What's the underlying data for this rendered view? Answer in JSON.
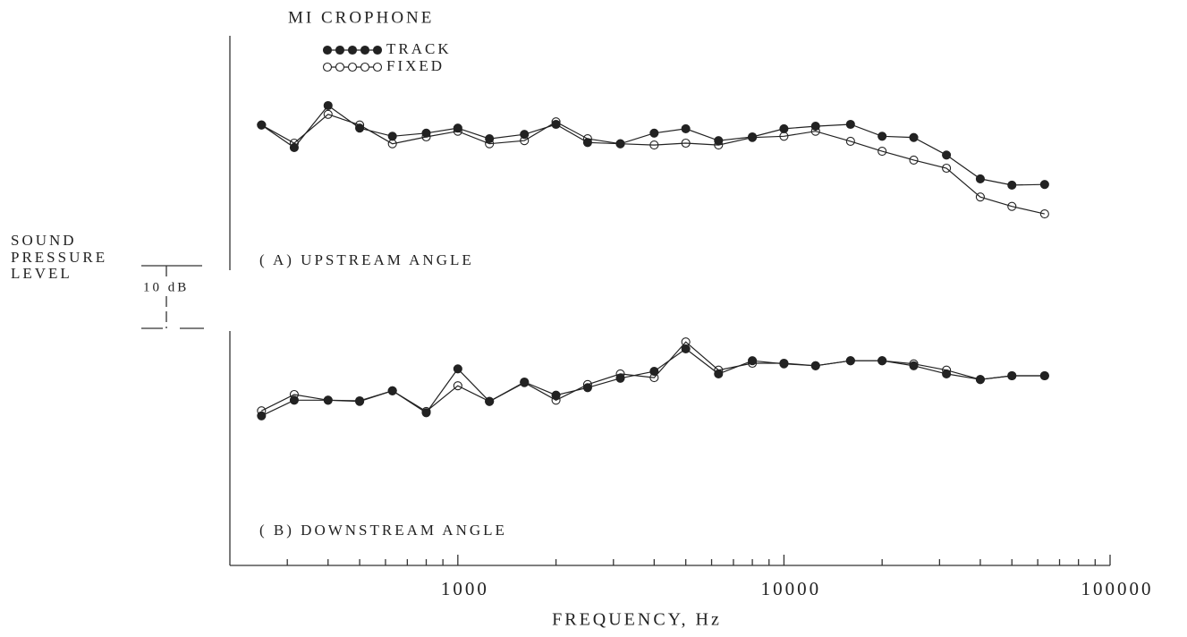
{
  "chart_data": [
    {
      "type": "line",
      "title": "MI CROPHONE",
      "subtitle": "( A) UPSTREAM ANGLE",
      "ylabel": [
        "SOUND",
        "PRESSURE",
        "LEVEL"
      ],
      "scale_bar": {
        "value": 10,
        "label": "10 dB"
      },
      "xscale": "log",
      "xlim": [
        200,
        100000
      ],
      "ylim": [
        0,
        36
      ],
      "x": [
        250,
        315,
        400,
        500,
        630,
        800,
        1000,
        1250,
        1600,
        2000,
        2500,
        3150,
        4000,
        5000,
        6300,
        8000,
        10000,
        12500,
        16000,
        20000,
        25000,
        31500,
        40000,
        50000,
        63000
      ],
      "series": [
        {
          "name": "TRACK",
          "color": "#222222",
          "marker": "filled",
          "values": [
            22.9,
            19.3,
            26.0,
            22.4,
            21.1,
            21.6,
            22.4,
            20.7,
            21.4,
            23.0,
            20.1,
            19.9,
            21.6,
            22.3,
            20.4,
            21.0,
            22.3,
            22.7,
            23.0,
            21.1,
            20.9,
            18.1,
            14.3,
            13.3,
            13.4
          ]
        },
        {
          "name": "FIXED",
          "color": "#222222",
          "marker": "open",
          "values": [
            22.9,
            20.0,
            24.6,
            22.9,
            19.9,
            21.0,
            21.9,
            19.9,
            20.4,
            23.4,
            20.7,
            19.9,
            19.7,
            20.0,
            19.7,
            20.9,
            21.1,
            21.9,
            20.3,
            18.7,
            17.3,
            16.0,
            11.4,
            9.9,
            8.7
          ]
        }
      ]
    },
    {
      "type": "line",
      "subtitle": "( B) DOWNSTREAM ANGLE",
      "xlabel": "FREQUENCY,  Hz",
      "xscale": "log",
      "xlim": [
        200,
        100000
      ],
      "ylim": [
        0,
        36
      ],
      "xticks": [
        1000,
        10000,
        100000
      ],
      "xminor_ticks": [
        300,
        400,
        500,
        600,
        700,
        800,
        900,
        2000,
        3000,
        4000,
        5000,
        6000,
        7000,
        8000,
        9000,
        20000,
        30000,
        40000,
        50000,
        60000,
        70000,
        80000,
        90000
      ],
      "x": [
        250,
        315,
        400,
        500,
        630,
        800,
        1000,
        1250,
        1600,
        2000,
        2500,
        3150,
        4000,
        5000,
        6300,
        8000,
        10000,
        12500,
        16000,
        20000,
        25000,
        31500,
        40000,
        50000,
        63000
      ],
      "series": [
        {
          "name": "TRACK",
          "color": "#222222",
          "marker": "filled",
          "values": [
            23.6,
            26.1,
            26.1,
            26.0,
            27.6,
            24.1,
            31.1,
            25.9,
            29.0,
            26.9,
            28.1,
            29.6,
            30.7,
            34.3,
            30.3,
            32.4,
            31.9,
            31.6,
            32.4,
            32.4,
            31.6,
            30.3,
            29.4,
            30.0,
            30.0
          ]
        },
        {
          "name": "FIXED",
          "color": "#222222",
          "marker": "open",
          "values": [
            24.4,
            27.0,
            26.1,
            25.9,
            27.6,
            24.3,
            28.4,
            25.9,
            28.9,
            26.1,
            28.6,
            30.3,
            29.7,
            35.4,
            30.9,
            32.0,
            32.0,
            31.6,
            32.4,
            32.4,
            31.9,
            30.9,
            29.4,
            30.0,
            30.0
          ]
        }
      ]
    }
  ]
}
